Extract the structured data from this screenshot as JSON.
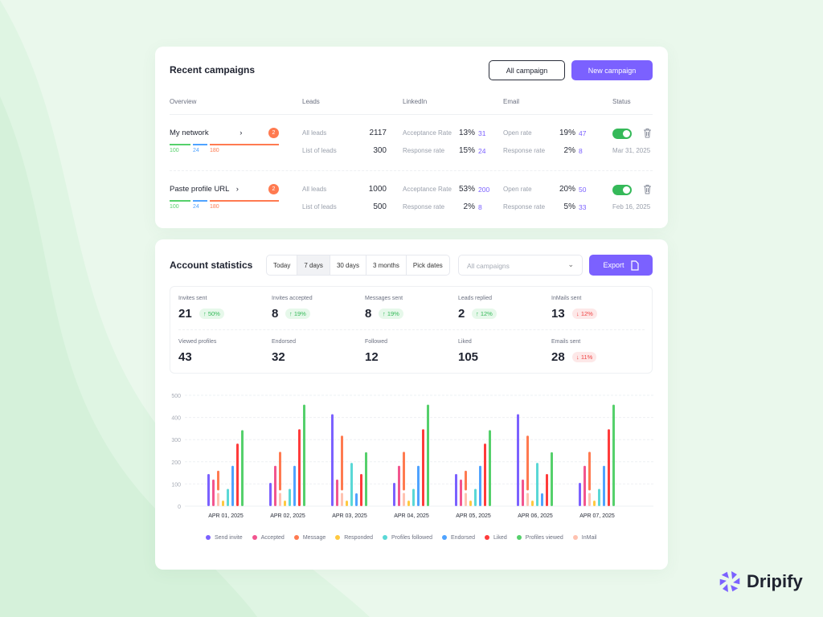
{
  "brand": {
    "name": "Dripify",
    "color": "#7b61ff"
  },
  "campaigns": {
    "title": "Recent campaigns",
    "all_button": "All campaign",
    "new_button": "New campaign",
    "headers": [
      "Overview",
      "Leads",
      "LinkedIn",
      "Email",
      "Status"
    ],
    "rows": [
      {
        "name": "My network",
        "badge": "2",
        "bars": [
          "100",
          "24",
          "180"
        ],
        "leads": [
          {
            "label": "All leads",
            "value": "2117"
          },
          {
            "label": "List of leads",
            "value": "300"
          }
        ],
        "linkedin": [
          {
            "label": "Acceptance Rate",
            "pct": "13%",
            "count": "31"
          },
          {
            "label": "Response rate",
            "pct": "15%",
            "count": "24"
          }
        ],
        "email": [
          {
            "label": "Open rate",
            "pct": "19%",
            "count": "47"
          },
          {
            "label": "Response rate",
            "pct": "2%",
            "count": "8"
          }
        ],
        "active": true,
        "date": "Mar 31, 2025"
      },
      {
        "name": "Paste profile URL",
        "badge": "2",
        "bars": [
          "100",
          "24",
          "180"
        ],
        "leads": [
          {
            "label": "All leads",
            "value": "1000"
          },
          {
            "label": "List of leads",
            "value": "500"
          }
        ],
        "linkedin": [
          {
            "label": "Acceptance Rate",
            "pct": "53%",
            "count": "200"
          },
          {
            "label": "Response rate",
            "pct": "2%",
            "count": "8"
          }
        ],
        "email": [
          {
            "label": "Open rate",
            "pct": "20%",
            "count": "50"
          },
          {
            "label": "Response rate",
            "pct": "5%",
            "count": "33"
          }
        ],
        "active": true,
        "date": "Feb 16, 2025"
      }
    ]
  },
  "stats": {
    "title": "Account statistics",
    "ranges": [
      "Today",
      "7 days",
      "30 days",
      "3 months",
      "Pick dates"
    ],
    "selected_range": "7 days",
    "campaign_select_placeholder": "All campaigns",
    "export_button": "Export",
    "cards": [
      {
        "label": "Invites sent",
        "value": "21",
        "change": "50%",
        "dir": "up"
      },
      {
        "label": "Invites accepted",
        "value": "8",
        "change": "19%",
        "dir": "up"
      },
      {
        "label": "Messages sent",
        "value": "8",
        "change": "19%",
        "dir": "up"
      },
      {
        "label": "Leads replied",
        "value": "2",
        "change": "12%",
        "dir": "up"
      },
      {
        "label": "InMails sent",
        "value": "13",
        "change": "12%",
        "dir": "down"
      },
      {
        "label": "Viewed profiles",
        "value": "43"
      },
      {
        "label": "Endorsed",
        "value": "32"
      },
      {
        "label": "Followed",
        "value": "12"
      },
      {
        "label": "Liked",
        "value": "105"
      },
      {
        "label": "Emails sent",
        "value": "28",
        "change": "11%",
        "dir": "down"
      }
    ]
  },
  "chart_data": {
    "type": "bar",
    "categories": [
      "APR 01, 2025",
      "APR 02, 2025",
      "APR 03, 2025",
      "APR 04, 2025",
      "APR 05, 2025",
      "APR 06, 2025",
      "APR 07, 2025"
    ],
    "ylim": [
      0,
      500
    ],
    "yticks": [
      "0",
      "100",
      "200",
      "300",
      "400",
      "500"
    ],
    "grid": true,
    "legend_position": "bottom",
    "series": [
      {
        "name": "Send invite",
        "color": "#7b61ff",
        "values": [
          145,
          105,
          415,
          105,
          145,
          415,
          105
        ]
      },
      {
        "name": "Accepted",
        "color": "#f2558f",
        "values": [
          120,
          182,
          120,
          182,
          120,
          120,
          182
        ]
      },
      {
        "name": "Message",
        "color": "#ff7a50",
        "values": [
          160,
          245,
          318,
          245,
          160,
          318,
          245
        ]
      },
      {
        "name": "Responded",
        "color": "#ffc940",
        "values": [
          25,
          25,
          25,
          25,
          25,
          25,
          25
        ]
      },
      {
        "name": "Profiles followed",
        "color": "#5ad8d6",
        "values": [
          78,
          78,
          195,
          78,
          78,
          195,
          78
        ]
      },
      {
        "name": "Endorsed",
        "color": "#4fa3ff",
        "values": [
          182,
          182,
          58,
          182,
          182,
          58,
          182
        ]
      },
      {
        "name": "Liked",
        "color": "#ff3b3b",
        "values": [
          282,
          347,
          145,
          347,
          282,
          145,
          347
        ]
      },
      {
        "name": "Profiles viewed",
        "color": "#55d06b",
        "values": [
          343,
          458,
          243,
          458,
          343,
          243,
          458
        ]
      },
      {
        "name": "InMail",
        "color": "#ffc2b0",
        "values": [
          60,
          60,
          60,
          60,
          60,
          60,
          60
        ]
      }
    ]
  }
}
